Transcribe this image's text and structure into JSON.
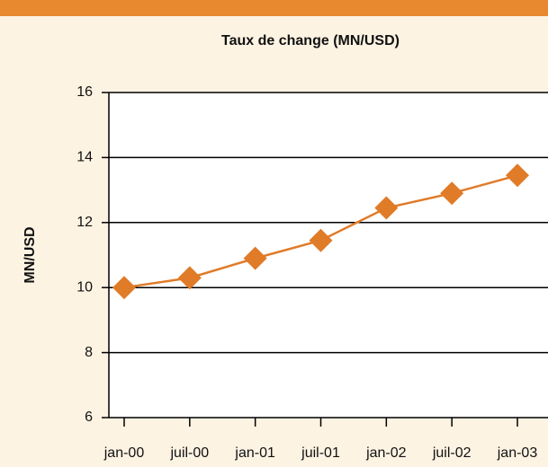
{
  "chart_data": {
    "type": "line",
    "title": "Taux de change (MN/USD)",
    "y_label": "MN/USD",
    "categories": [
      "jan-00",
      "juil-00",
      "jan-01",
      "juil-01",
      "jan-02",
      "juil-02",
      "jan-03"
    ],
    "series": [
      {
        "name": "MN/USD",
        "color": "#e07b28",
        "values": [
          10.0,
          10.3,
          10.9,
          11.45,
          12.45,
          12.9,
          13.45
        ]
      }
    ],
    "ylim": [
      6,
      16
    ],
    "yticks": [
      6,
      8,
      10,
      12,
      14,
      16
    ],
    "grid": true
  }
}
